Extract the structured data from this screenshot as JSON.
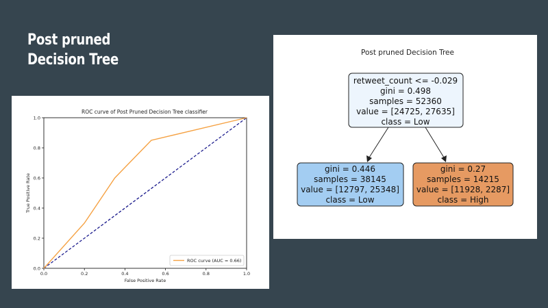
{
  "slide": {
    "title_lines": [
      "Post pruned",
      "Decision Tree"
    ]
  },
  "chart_data": [
    {
      "type": "line",
      "title": "ROC curve of Post Pruned Decision Tree classifier",
      "xlabel": "False Positive Rate",
      "ylabel": "True Positive Rate",
      "xlim": [
        0.0,
        1.0
      ],
      "ylim": [
        0.0,
        1.0
      ],
      "xticks": [
        "0.0",
        "0.2",
        "0.4",
        "0.6",
        "0.8",
        "1.0"
      ],
      "yticks": [
        "0.0",
        "0.2",
        "0.4",
        "0.6",
        "0.8",
        "1.0"
      ],
      "grid": false,
      "legend": "lower-right",
      "series": [
        {
          "name": "ROC curve (AUC = 0.66)",
          "color": "#f5a142",
          "style": "solid",
          "x": [
            0.0,
            0.2,
            0.26,
            0.3,
            0.35,
            0.4,
            0.53,
            1.0
          ],
          "y": [
            0.0,
            0.3,
            0.42,
            0.5,
            0.6,
            0.67,
            0.85,
            1.0
          ]
        },
        {
          "name": "",
          "color": "#1a1a8c",
          "style": "dashed",
          "x": [
            0.0,
            1.0
          ],
          "y": [
            0.0,
            1.0
          ]
        }
      ]
    }
  ],
  "tree": {
    "title": "Post pruned Decision Tree",
    "root": {
      "lines": [
        "retweet_count <= -0.029",
        "gini = 0.498",
        "samples = 52360",
        "value = [24725, 27635]",
        "class = Low"
      ],
      "fill": "#edf5fd"
    },
    "left": {
      "lines": [
        "gini = 0.446",
        "samples = 38145",
        "value = [12797, 25348]",
        "class = Low"
      ],
      "fill": "#a3cdf2"
    },
    "right": {
      "lines": [
        "gini = 0.27",
        "samples = 14215",
        "value = [11928, 2287]",
        "class = High"
      ],
      "fill": "#e69a62"
    }
  }
}
